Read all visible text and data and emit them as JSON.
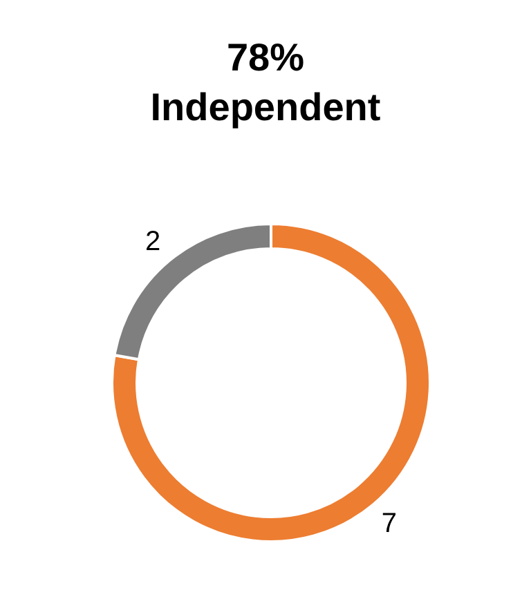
{
  "chart_data": {
    "type": "donut",
    "title": "78%\nIndependent",
    "categories": [
      null,
      null
    ],
    "values": [
      7,
      2
    ],
    "colors": [
      "#ed7d31",
      "#7f7f7f"
    ],
    "data_labels": true
  }
}
